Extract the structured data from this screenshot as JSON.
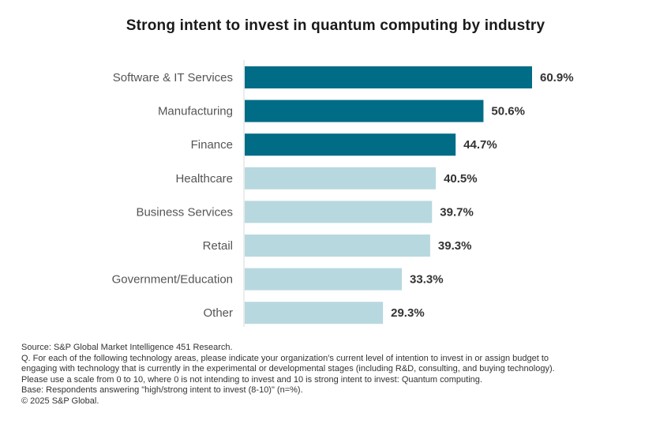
{
  "title": "Strong intent to invest in quantum computing by industry",
  "colors": {
    "highlight": "#006c86",
    "base": "#b8d8df",
    "axis": "#d9d9d9"
  },
  "chart_data": {
    "type": "bar",
    "orientation": "horizontal",
    "categories": [
      "Software & IT Services",
      "Manufacturing",
      "Finance",
      "Healthcare",
      "Business Services",
      "Retail",
      "Government/Education",
      "Other"
    ],
    "values": [
      60.9,
      50.6,
      44.7,
      40.5,
      39.7,
      39.3,
      33.3,
      29.3
    ],
    "value_labels": [
      "60.9%",
      "50.6%",
      "44.7%",
      "40.5%",
      "39.7%",
      "39.3%",
      "33.3%",
      "29.3%"
    ],
    "highlighted": [
      true,
      true,
      true,
      false,
      false,
      false,
      false,
      false
    ],
    "xlim": [
      0,
      60.9
    ],
    "grid": false,
    "title": "Strong intent to invest in quantum computing by industry"
  },
  "footnotes": [
    "Source: S&P Global Market Intelligence 451 Research.",
    "Q. For each of the following technology areas, please indicate your organization's current level of intention to invest in or assign budget to",
    "engaging with technology that is currently in the experimental or developmental stages (including R&D, consulting, and buying technology).",
    "Please use a scale from 0 to 10, where 0 is not intending to invest and 10 is strong intent to invest: Quantum computing.",
    "Base: Respondents answering \"high/strong intent to invest (8-10)\" (n=%).",
    "© 2025 S&P Global."
  ]
}
